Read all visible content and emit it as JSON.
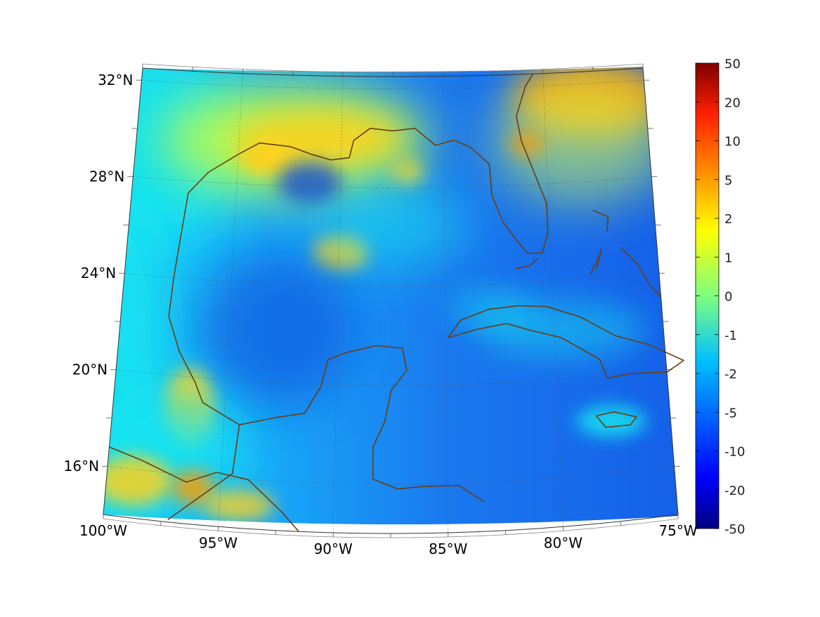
{
  "map": {
    "projection": "conic",
    "lon_range": [
      -100,
      -75
    ],
    "lat_range": [
      14,
      32.5
    ],
    "lon_labels": [
      "100°W",
      "95°W",
      "90°W",
      "85°W",
      "80°W",
      "75°W"
    ],
    "lat_labels": [
      "32°N",
      "28°N",
      "24°N",
      "20°N",
      "16°N"
    ],
    "coastline_color": "#6b3d12",
    "gridlines": true,
    "gridline_style": "dotted"
  },
  "colorbar": {
    "colormap": "jet",
    "scale": "symmetric-log",
    "tick_labels": [
      "50",
      "20",
      "10",
      "5",
      "2",
      "1",
      "0",
      "-1",
      "-2",
      "-5",
      "-10",
      "-20",
      "-50"
    ]
  },
  "field_colors": {
    "background": "#1d6ff2",
    "warm": "#ffd21a",
    "hot": "#ff9d00",
    "cold": "#0f3fd8",
    "cyan": "#19e6f0"
  }
}
